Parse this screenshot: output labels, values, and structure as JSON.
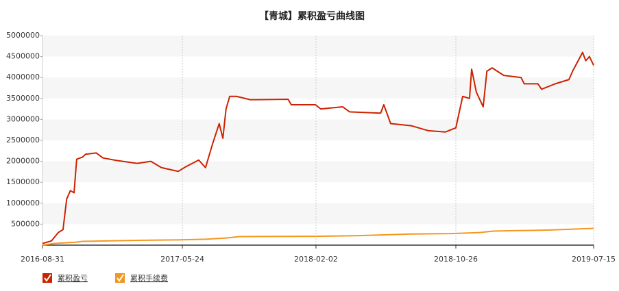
{
  "chart_data": {
    "type": "line",
    "title": "【青城】累积盈亏曲线图",
    "xlim": [
      "2016-08-31",
      "2019-07-15"
    ],
    "xticks": [
      "2016-08-31",
      "2017-05-24",
      "2018-02-02",
      "2018-10-26",
      "2019-07-15"
    ],
    "ylim": [
      0,
      5000000
    ],
    "yticks": [
      500000,
      1000000,
      1500000,
      2000000,
      2500000,
      3000000,
      3500000,
      4000000,
      4500000,
      5000000
    ],
    "grid": true,
    "legend": "bottom-left",
    "series": [
      {
        "name": "累积盈亏",
        "color": "#cc2200",
        "x": [
          "2016-08-31",
          "2016-09-17",
          "2016-09-30",
          "2016-10-09",
          "2016-10-16",
          "2016-10-23",
          "2016-10-30",
          "2016-11-04",
          "2016-11-15",
          "2016-11-21",
          "2016-12-11",
          "2016-12-24",
          "2017-01-19",
          "2017-02-27",
          "2017-03-25",
          "2017-04-14",
          "2017-05-16",
          "2017-05-29",
          "2017-06-24",
          "2017-07-07",
          "2017-07-20",
          "2017-08-02",
          "2017-08-09",
          "2017-08-15",
          "2017-08-22",
          "2017-09-04",
          "2017-09-30",
          "2017-12-11",
          "2017-12-17",
          "2018-02-01",
          "2018-02-11",
          "2018-03-25",
          "2018-04-07",
          "2018-06-05",
          "2018-06-11",
          "2018-06-24",
          "2018-08-02",
          "2018-09-04",
          "2018-10-06",
          "2018-10-26",
          "2018-11-08",
          "2018-11-21",
          "2018-11-25",
          "2018-12-04",
          "2018-12-17",
          "2018-12-24",
          "2019-01-03",
          "2019-01-25",
          "2019-02-27",
          "2019-03-05",
          "2019-03-31",
          "2019-04-07",
          "2019-05-03",
          "2019-05-29",
          "2019-06-05",
          "2019-06-24",
          "2019-06-30",
          "2019-07-07",
          "2019-07-15"
        ],
        "values": [
          40000,
          100000,
          300000,
          370000,
          1100000,
          1300000,
          1250000,
          2050000,
          2100000,
          2170000,
          2200000,
          2080000,
          2020000,
          1950000,
          2000000,
          1850000,
          1760000,
          1860000,
          2030000,
          1850000,
          2400000,
          2900000,
          2550000,
          3250000,
          3550000,
          3550000,
          3470000,
          3480000,
          3350000,
          3350000,
          3250000,
          3300000,
          3180000,
          3150000,
          3350000,
          2900000,
          2850000,
          2730000,
          2700000,
          2800000,
          3550000,
          3500000,
          4200000,
          3650000,
          3300000,
          4150000,
          4230000,
          4050000,
          4000000,
          3850000,
          3850000,
          3720000,
          3850000,
          3950000,
          4150000,
          4600000,
          4400000,
          4500000,
          4290000
        ]
      },
      {
        "name": "累积手续费",
        "color": "#f5961e",
        "x": [
          "2016-08-31",
          "2016-09-23",
          "2016-11-02",
          "2016-11-15",
          "2017-02-27",
          "2017-05-16",
          "2017-07-07",
          "2017-08-15",
          "2017-09-10",
          "2018-02-01",
          "2018-04-20",
          "2018-08-02",
          "2018-10-19",
          "2018-12-10",
          "2019-01-05",
          "2019-04-20",
          "2019-07-15"
        ],
        "values": [
          0,
          40000,
          70000,
          90000,
          115000,
          125000,
          140000,
          170000,
          205000,
          210000,
          225000,
          265000,
          275000,
          300000,
          335000,
          360000,
          400000
        ]
      }
    ]
  }
}
